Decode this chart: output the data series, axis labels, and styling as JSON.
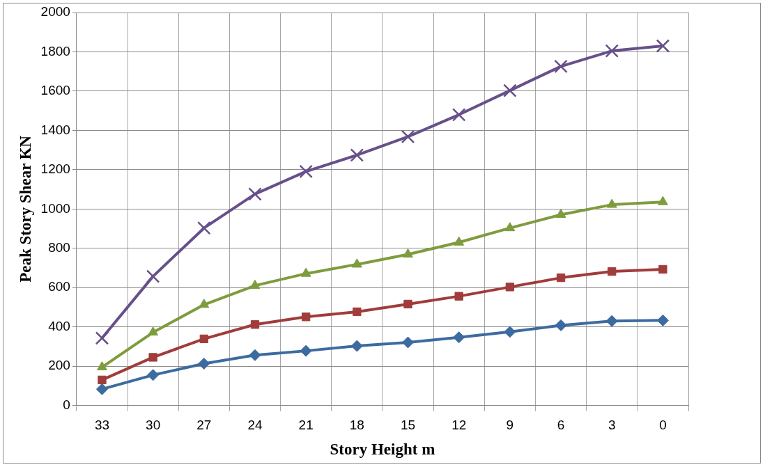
{
  "chart_data": {
    "type": "line",
    "xlabel": "Story Height m",
    "ylabel": "Peak Story Shear KN",
    "categories": [
      "33",
      "30",
      "27",
      "24",
      "21",
      "18",
      "15",
      "12",
      "9",
      "6",
      "3",
      "0"
    ],
    "series": [
      {
        "color": "#3c6ba0",
        "marker": "diamond",
        "values": [
          83,
          155,
          213,
          256,
          278,
          303,
          321,
          347,
          375,
          408,
          430,
          433
        ]
      },
      {
        "color": "#a03c3a",
        "marker": "square",
        "values": [
          130,
          245,
          339,
          412,
          451,
          477,
          516,
          556,
          603,
          650,
          682,
          693
        ]
      },
      {
        "color": "#7e9c3e",
        "marker": "triangle",
        "values": [
          195,
          372,
          513,
          610,
          671,
          718,
          769,
          830,
          903,
          971,
          1022,
          1036
        ]
      },
      {
        "color": "#67508a",
        "marker": "cross",
        "values": [
          343,
          657,
          903,
          1076,
          1191,
          1274,
          1368,
          1480,
          1603,
          1726,
          1805,
          1830
        ]
      }
    ],
    "ylim": [
      0,
      2000
    ],
    "yticks": [
      0,
      200,
      400,
      600,
      800,
      1000,
      1200,
      1400,
      1600,
      1800,
      2000
    ],
    "grid": true,
    "legend": false,
    "line_style": "solid"
  }
}
